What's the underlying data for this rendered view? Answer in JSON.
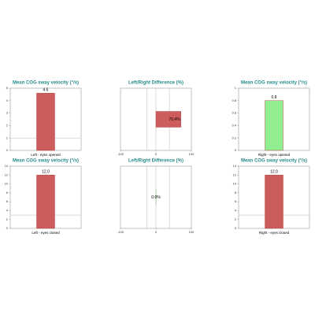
{
  "chart_data": [
    {
      "type": "bar",
      "title": "Mean COG sway velocity (°/s)",
      "categories": [
        "Left - eyes opened"
      ],
      "values": [
        4.6
      ],
      "value_labels": [
        "4.6"
      ],
      "color": "#cd5c5c",
      "ylim": [
        0,
        5
      ],
      "yticks": [
        0,
        1,
        2,
        3,
        4,
        5
      ],
      "reference": [
        1
      ]
    },
    {
      "type": "barh",
      "title": "Left/Right Difference (%)",
      "values": [
        70.4
      ],
      "value_labels": [
        "70.4%"
      ],
      "color": "#cd5c5c",
      "xlim": [
        -100,
        100
      ],
      "xticks": [
        -100,
        0,
        100
      ],
      "reference": [
        -25,
        0,
        38
      ]
    },
    {
      "type": "bar",
      "title": "Mean COG sway velocity (°/s)",
      "categories": [
        "Right - eyes opened"
      ],
      "values": [
        0.8
      ],
      "value_labels": [
        "0.8"
      ],
      "color": "#90ee90",
      "ylim": [
        0,
        1
      ],
      "yticks": [
        0,
        0.2,
        0.4,
        0.6,
        0.8,
        1
      ],
      "reference": []
    },
    {
      "type": "bar",
      "title": "Mean COG sway velocity (°/s)",
      "categories": [
        "Left - eyes closed"
      ],
      "values": [
        12.0
      ],
      "value_labels": [
        "12.0"
      ],
      "color": "#cd5c5c",
      "ylim": [
        0,
        14
      ],
      "yticks": [
        0,
        2,
        4,
        6,
        8,
        10,
        12,
        14
      ],
      "reference": [
        3
      ]
    },
    {
      "type": "barh",
      "title": "Left/Right Difference (%)",
      "values": [
        0.0
      ],
      "value_labels": [
        "0.0%"
      ],
      "color": "#2e9b2e",
      "xlim": [
        -100,
        100
      ],
      "xticks": [
        -100,
        0,
        100
      ],
      "reference": [
        -25,
        0,
        38
      ]
    },
    {
      "type": "bar",
      "title": "Mean COG sway velocity (°/s)",
      "categories": [
        "Right - eyes closed"
      ],
      "values": [
        12.0
      ],
      "value_labels": [
        "12.0"
      ],
      "color": "#cd5c5c",
      "ylim": [
        0,
        14
      ],
      "yticks": [
        0,
        2,
        4,
        6,
        8,
        10,
        12,
        14
      ],
      "reference": [
        3
      ]
    }
  ]
}
